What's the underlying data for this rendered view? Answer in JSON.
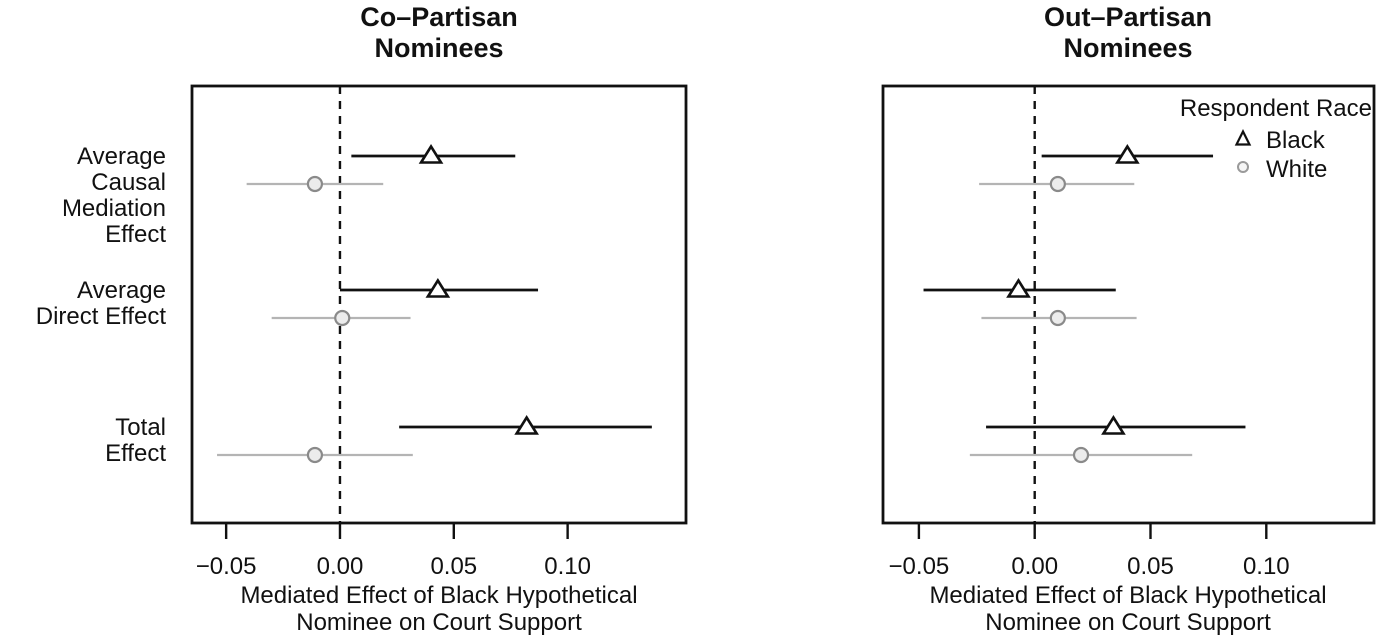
{
  "figure": {
    "background": "#ffffff",
    "colors": {
      "frame": "#111111",
      "black_series": "#111111",
      "gray_line": "#b4b4b4",
      "gray_marker_stroke": "#8a8a8a",
      "gray_marker_fill": "#ececec",
      "marker_fill_white": "#ffffff"
    },
    "legend": {
      "title": "Respondent Race",
      "position": "top-right",
      "items": [
        {
          "label": "Black",
          "marker": "triangle"
        },
        {
          "label": "White",
          "marker": "circle"
        }
      ]
    }
  },
  "chart_data": [
    {
      "type": "scatter",
      "panel": "co-partisan",
      "title_lines": [
        "Co–Partisan",
        "Nominees"
      ],
      "xlabel_lines": [
        "Mediated Effect of Black Hypothetical",
        "Nominee on Court Support"
      ],
      "categories": [
        [
          "Average Causal",
          "Mediation Effect"
        ],
        [
          "Average",
          "Direct Effect"
        ],
        [
          "Total",
          "Effect"
        ]
      ],
      "xlim": [
        -0.065,
        0.152
      ],
      "xticks": [
        -0.05,
        0,
        0.05,
        0.1
      ],
      "xtick_labels": [
        "−0.05",
        "0.00",
        "0.05",
        "0.10"
      ],
      "zero_line": 0,
      "grid": false,
      "series": [
        {
          "name": "Black",
          "marker": "triangle",
          "estimates": [
            0.04,
            0.043,
            0.082
          ],
          "ci_low": [
            0.005,
            0.0,
            0.026
          ],
          "ci_high": [
            0.077,
            0.087,
            0.137
          ]
        },
        {
          "name": "White",
          "marker": "circle",
          "estimates": [
            -0.011,
            0.001,
            -0.011
          ],
          "ci_low": [
            -0.041,
            -0.03,
            -0.054
          ],
          "ci_high": [
            0.019,
            0.031,
            0.032
          ]
        }
      ]
    },
    {
      "type": "scatter",
      "panel": "out-partisan",
      "title_lines": [
        "Out–Partisan",
        "Nominees"
      ],
      "xlabel_lines": [
        "Mediated Effect of Black Hypothetical",
        "Nominee on Court Support"
      ],
      "categories": [
        [
          "Average Causal",
          "Mediation Effect"
        ],
        [
          "Average",
          "Direct Effect"
        ],
        [
          "Total",
          "Effect"
        ]
      ],
      "xlim": [
        -0.0655,
        0.1465
      ],
      "xticks": [
        -0.05,
        0,
        0.05,
        0.1
      ],
      "xtick_labels": [
        "−0.05",
        "0.00",
        "0.05",
        "0.10"
      ],
      "zero_line": 0,
      "grid": false,
      "series": [
        {
          "name": "Black",
          "marker": "triangle",
          "estimates": [
            0.04,
            -0.007,
            0.034
          ],
          "ci_low": [
            0.003,
            -0.048,
            -0.021
          ],
          "ci_high": [
            0.077,
            0.035,
            0.091
          ]
        },
        {
          "name": "White",
          "marker": "circle",
          "estimates": [
            0.01,
            0.01,
            0.02
          ],
          "ci_low": [
            -0.024,
            -0.023,
            -0.028
          ],
          "ci_high": [
            0.043,
            0.044,
            0.068
          ]
        }
      ]
    }
  ]
}
